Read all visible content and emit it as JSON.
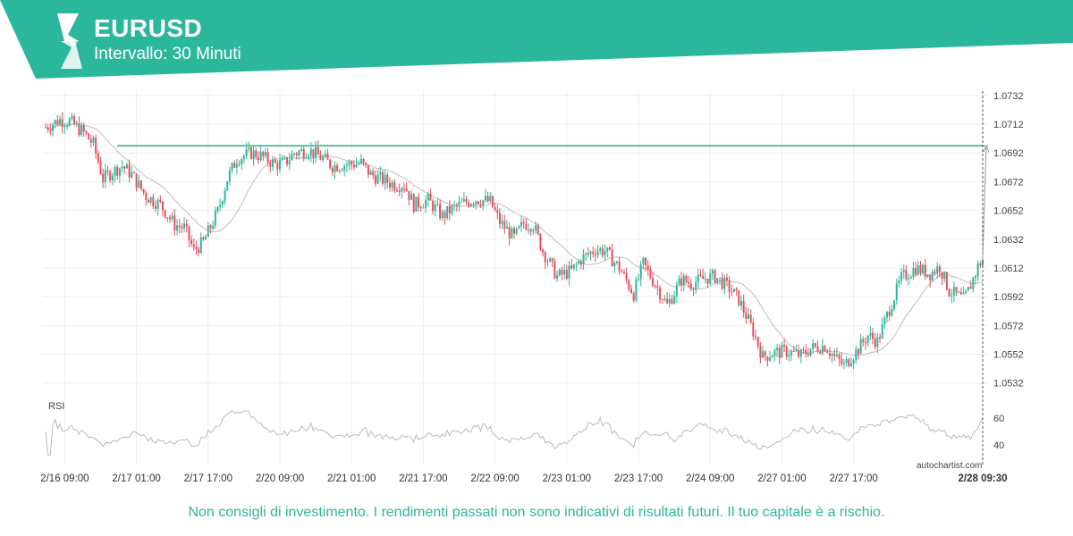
{
  "header": {
    "symbol": "EURUSD",
    "interval": "Intervallo: 30 Minuti",
    "logo_icon": "autochartist-logo-icon",
    "colors": {
      "brand": "#2bb79b"
    }
  },
  "footer": {
    "disclaimer": "Non consigli di investimento. I rendimenti passati non sono indicativi di risultati futuri. Il tuo capitale è a rischio.",
    "watermark": "autochartist.com"
  },
  "chart_data": {
    "type": "candlestick",
    "instrument": "EURUSD",
    "timeframe": "30 Minuti",
    "grid": true,
    "y_ticks": [
      "1.0732",
      "1.0712",
      "1.0692",
      "1.0672",
      "1.0652",
      "1.0632",
      "1.0612",
      "1.0592",
      "1.0572",
      "1.0552",
      "1.0532"
    ],
    "ylim": [
      1.0525,
      1.0735
    ],
    "x_ticks": [
      "2/16 09:00",
      "2/17 01:00",
      "2/17 17:00",
      "2/20 09:00",
      "2/21 01:00",
      "2/21 17:00",
      "2/22 09:00",
      "2/23 01:00",
      "2/23 17:00",
      "2/24 09:00",
      "2/27 01:00",
      "2/27 17:00",
      "2/28 09:30"
    ],
    "current_time_label": "2/28 09:30",
    "resistance_level": 1.0697,
    "projection_target": 1.0697,
    "price_path": [
      [
        0,
        1.071
      ],
      [
        6,
        1.0715
      ],
      [
        10,
        1.0714
      ],
      [
        16,
        1.0706
      ],
      [
        20,
        1.0698
      ],
      [
        24,
        1.0674
      ],
      [
        28,
        1.0679
      ],
      [
        32,
        1.0683
      ],
      [
        36,
        1.0677
      ],
      [
        42,
        1.0662
      ],
      [
        48,
        1.0656
      ],
      [
        54,
        1.0642
      ],
      [
        58,
        1.064
      ],
      [
        62,
        1.0624
      ],
      [
        66,
        1.063
      ],
      [
        72,
        1.0651
      ],
      [
        76,
        1.0674
      ],
      [
        80,
        1.0688
      ],
      [
        86,
        1.0692
      ],
      [
        90,
        1.069
      ],
      [
        96,
        1.0684
      ],
      [
        100,
        1.0685
      ],
      [
        104,
        1.0692
      ],
      [
        110,
        1.0694
      ],
      [
        116,
        1.0688
      ],
      [
        120,
        1.0683
      ],
      [
        126,
        1.0684
      ],
      [
        132,
        1.0685
      ],
      [
        136,
        1.0677
      ],
      [
        140,
        1.0674
      ],
      [
        146,
        1.067
      ],
      [
        150,
        1.067
      ],
      [
        154,
        1.0656
      ],
      [
        160,
        1.0659
      ],
      [
        166,
        1.0648
      ],
      [
        170,
        1.0653
      ],
      [
        176,
        1.0658
      ],
      [
        180,
        1.066
      ],
      [
        186,
        1.0658
      ],
      [
        190,
        1.0644
      ],
      [
        196,
        1.0633
      ],
      [
        200,
        1.0643
      ],
      [
        204,
        1.0642
      ],
      [
        208,
        1.0624
      ],
      [
        214,
        1.0606
      ],
      [
        220,
        1.061
      ],
      [
        224,
        1.0618
      ],
      [
        230,
        1.0625
      ],
      [
        234,
        1.0624
      ],
      [
        240,
        1.0612
      ],
      [
        246,
        1.0594
      ],
      [
        250,
        1.0615
      ],
      [
        256,
        1.0598
      ],
      [
        260,
        1.0586
      ],
      [
        266,
        1.0604
      ],
      [
        270,
        1.0601
      ],
      [
        276,
        1.0605
      ],
      [
        280,
        1.0606
      ],
      [
        286,
        1.0598
      ],
      [
        290,
        1.059
      ],
      [
        296,
        1.0568
      ],
      [
        300,
        1.055
      ],
      [
        304,
        1.0553
      ],
      [
        310,
        1.0554
      ],
      [
        316,
        1.0551
      ],
      [
        320,
        1.0556
      ],
      [
        326,
        1.0558
      ],
      [
        330,
        1.055
      ],
      [
        334,
        1.0544
      ],
      [
        340,
        1.0556
      ],
      [
        344,
        1.0565
      ],
      [
        348,
        1.0561
      ],
      [
        354,
        1.0588
      ],
      [
        358,
        1.0605
      ],
      [
        364,
        1.0612
      ],
      [
        370,
        1.0608
      ],
      [
        374,
        1.0613
      ],
      [
        378,
        1.0596
      ],
      [
        384,
        1.059
      ],
      [
        386,
        1.0596
      ],
      [
        390,
        1.0613
      ],
      [
        392,
        1.0618
      ]
    ],
    "rsi": {
      "label": "RSI",
      "ticks": [
        60,
        40
      ],
      "ylim": [
        30,
        70
      ]
    },
    "colors": {
      "up": "#2bb79b",
      "down": "#e8505b",
      "resistance": "#5bbf9f",
      "moving_average": "#bdbdbd",
      "grid": "#eeeeee",
      "rsi_line": "#bbbbbb"
    }
  }
}
